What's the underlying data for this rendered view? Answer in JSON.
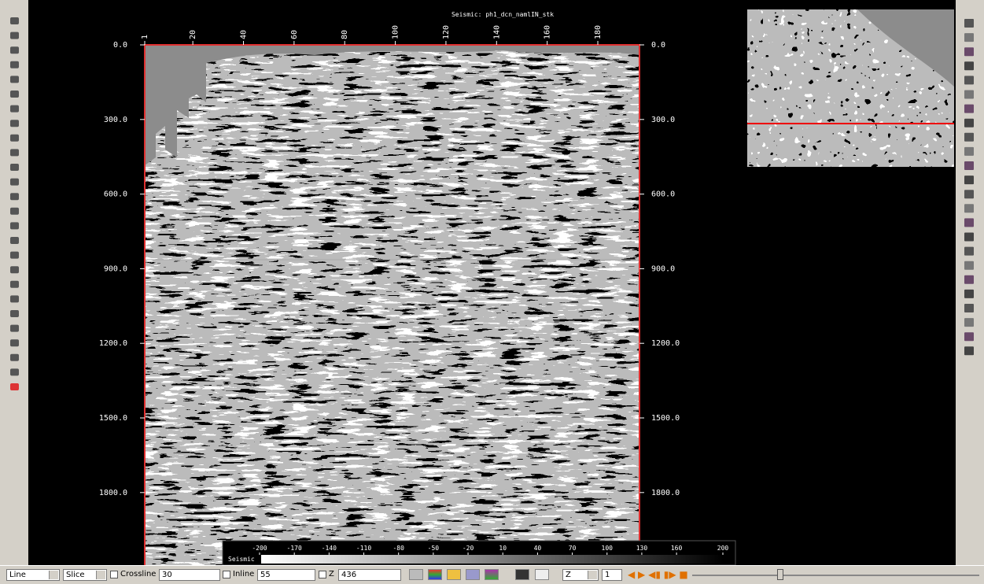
{
  "window": {
    "title": "Seismic: ph1_dcn_namlIN_stk"
  },
  "axes": {
    "top_ticks": [
      1,
      20,
      40,
      60,
      80,
      100,
      120,
      140,
      160,
      180
    ],
    "time_ticks": [
      "0.0",
      "300.0",
      "600.0",
      "900.0",
      "1200.0",
      "1500.0",
      "1800.0"
    ]
  },
  "colorbar": {
    "label": "Seismic",
    "ticks": [
      -200,
      -170,
      -140,
      -110,
      -80,
      -50,
      -20,
      10,
      40,
      70,
      100,
      130,
      160,
      200
    ]
  },
  "toolbar": {
    "mode": "Line",
    "slice": "Slice",
    "crossline_label": "Crossline",
    "crossline": "30",
    "inline_label": "Inline",
    "inline": "55",
    "z_label": "Z",
    "z": "436",
    "axis": "Z",
    "step": "1"
  }
}
